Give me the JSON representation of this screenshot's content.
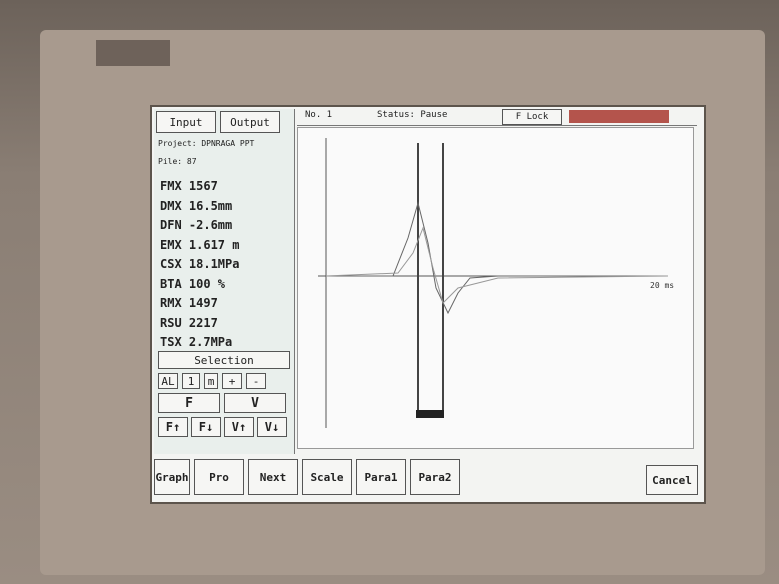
{
  "tabs": [
    "Input",
    "Output"
  ],
  "header": {
    "project": "Project: DPNRAGA PPT",
    "pile": "Pile: 87"
  },
  "readings": [
    "FMX 1567",
    "DMX 16.5mm",
    "DFN -2.6mm",
    "EMX 1.617 m",
    "CSX 18.1MPa",
    "BTA 100 %",
    "RMX 1497",
    "RSU 2217",
    "TSX 2.7MPa"
  ],
  "selection": {
    "title": "Selection",
    "row1": [
      "AL",
      "1",
      "m",
      "+",
      "-"
    ],
    "row2": [
      "F",
      "V"
    ],
    "row3": [
      "F↑",
      "F↓",
      "V↑",
      "V↓"
    ]
  },
  "status": {
    "pile": "No. 1",
    "state": "Status: Pause",
    "lock": "F Lock"
  },
  "graph": {
    "x_unit": "20 ms"
  },
  "buttons": [
    "Graph",
    "Pro",
    "Next",
    "Scale",
    "Para1",
    "Para2"
  ],
  "cancel": "Cancel"
}
